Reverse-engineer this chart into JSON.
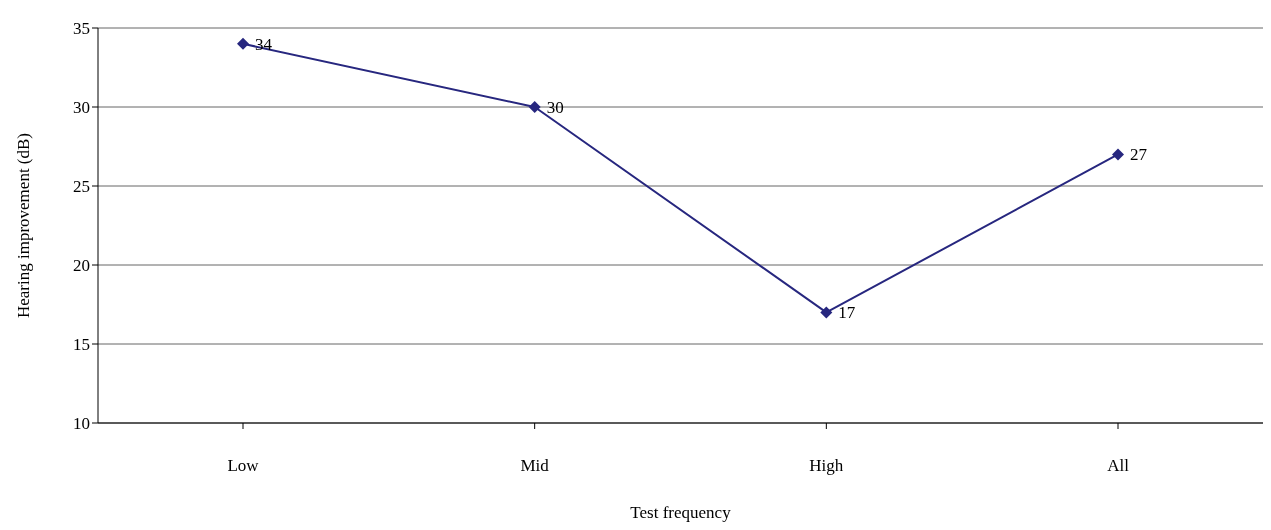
{
  "chart_data": {
    "type": "line",
    "xlabel": "Test frequency",
    "ylabel": "Hearing improvement (dB)",
    "categories": [
      "Low",
      "Mid",
      "High",
      "All"
    ],
    "series": [
      {
        "color": "#27277f",
        "values": [
          34,
          30,
          17,
          27
        ]
      }
    ],
    "ylim": [
      10,
      35
    ],
    "yticks": [
      10,
      15,
      20,
      25,
      30,
      35
    ],
    "grid": "y",
    "legend": false,
    "marker": "diamond",
    "line_style": "solid",
    "data_labels": true
  }
}
